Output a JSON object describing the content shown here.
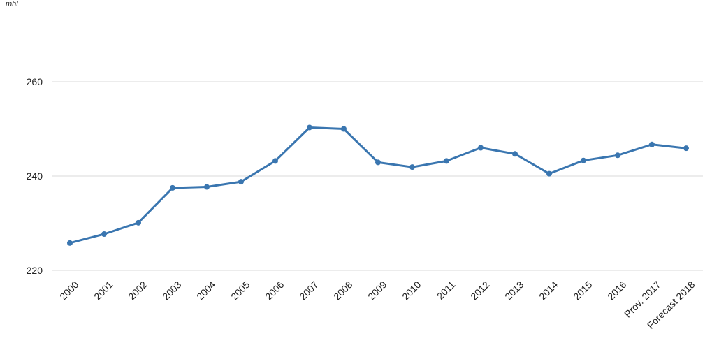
{
  "chart_data": {
    "type": "line",
    "title": "",
    "xlabel": "",
    "ylabel": "",
    "unit_label": "mhl",
    "categories": [
      "2000",
      "2001",
      "2002",
      "2003",
      "2004",
      "2005",
      "2006",
      "2007",
      "2008",
      "2009",
      "2010",
      "2011",
      "2012",
      "2013",
      "2014",
      "2015",
      "2016",
      "Prov. 2017",
      "Forecast 2018"
    ],
    "series": [
      {
        "values": [
          225.8,
          227.7,
          230.1,
          237.5,
          237.7,
          238.8,
          243.2,
          250.3,
          250.0,
          242.9,
          241.9,
          243.2,
          246.0,
          244.7,
          240.5,
          243.3,
          244.4,
          246.7,
          245.9
        ]
      }
    ],
    "ylim": [
      220,
      260
    ],
    "yticks": [
      220,
      240,
      260
    ],
    "grid": true,
    "legend": "none",
    "colors": {
      "line": "#3a76b0",
      "marker": "#3a76b0",
      "grid": "#d9d9d9",
      "text": "#222222"
    }
  }
}
